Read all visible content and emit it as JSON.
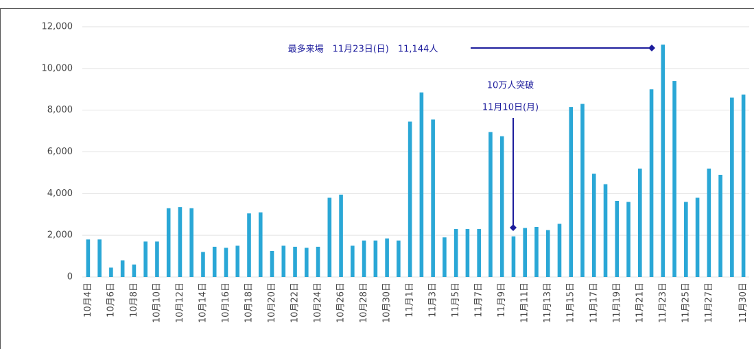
{
  "chart_data": {
    "type": "bar",
    "color": "#2aa7d6",
    "grid": true,
    "categories": [
      "10月4日",
      null,
      "10月6日",
      null,
      "10月8日",
      null,
      "10月10日",
      null,
      "10月12日",
      null,
      "10月14日",
      null,
      "10月16日",
      null,
      "10月18日",
      null,
      "10月20日",
      null,
      "10月22日",
      null,
      "10月24日",
      null,
      "10月26日",
      null,
      "10月28日",
      null,
      "10月30日",
      null,
      "11月1日",
      null,
      "11月3日",
      null,
      "11月5日",
      null,
      "11月7日",
      null,
      "11月9日",
      null,
      "11月11日",
      null,
      "11月13日",
      null,
      "11月15日",
      null,
      "11月17日",
      null,
      "11月19日",
      null,
      "11月21日",
      null,
      "11月23日",
      null,
      "11月25日",
      null,
      "11月27日",
      null,
      null,
      "11月30日"
    ],
    "values": [
      1800,
      1800,
      450,
      800,
      600,
      1700,
      1700,
      3300,
      3350,
      3300,
      1200,
      1450,
      1400,
      1500,
      3050,
      3100,
      1250,
      1500,
      1450,
      1400,
      1450,
      3800,
      3950,
      1500,
      1750,
      1750,
      1850,
      1750,
      7450,
      8850,
      7550,
      1900,
      2300,
      2300,
      2300,
      6950,
      6750,
      1950,
      2350,
      2400,
      2250,
      2550,
      8150,
      8300,
      4950,
      4450,
      3650,
      3600,
      5200,
      9000,
      11144,
      9400,
      3600,
      3800,
      5200,
      4900,
      8600,
      8750
    ],
    "ylim": [
      0,
      12000
    ],
    "yticks": [
      0,
      {
        "value": 2000,
        "label": "2,000"
      },
      {
        "value": 4000,
        "label": "4,000"
      },
      {
        "value": 6000,
        "label": "6,000"
      },
      {
        "value": 8000,
        "label": "8,000"
      },
      {
        "value": 10000,
        "label": "10,000"
      },
      {
        "value": 12000,
        "label": "12,000"
      }
    ],
    "annotations": [
      "最多来場　11月23日(日)　11,144人",
      "10万人突破",
      "11月10日(月)"
    ]
  }
}
